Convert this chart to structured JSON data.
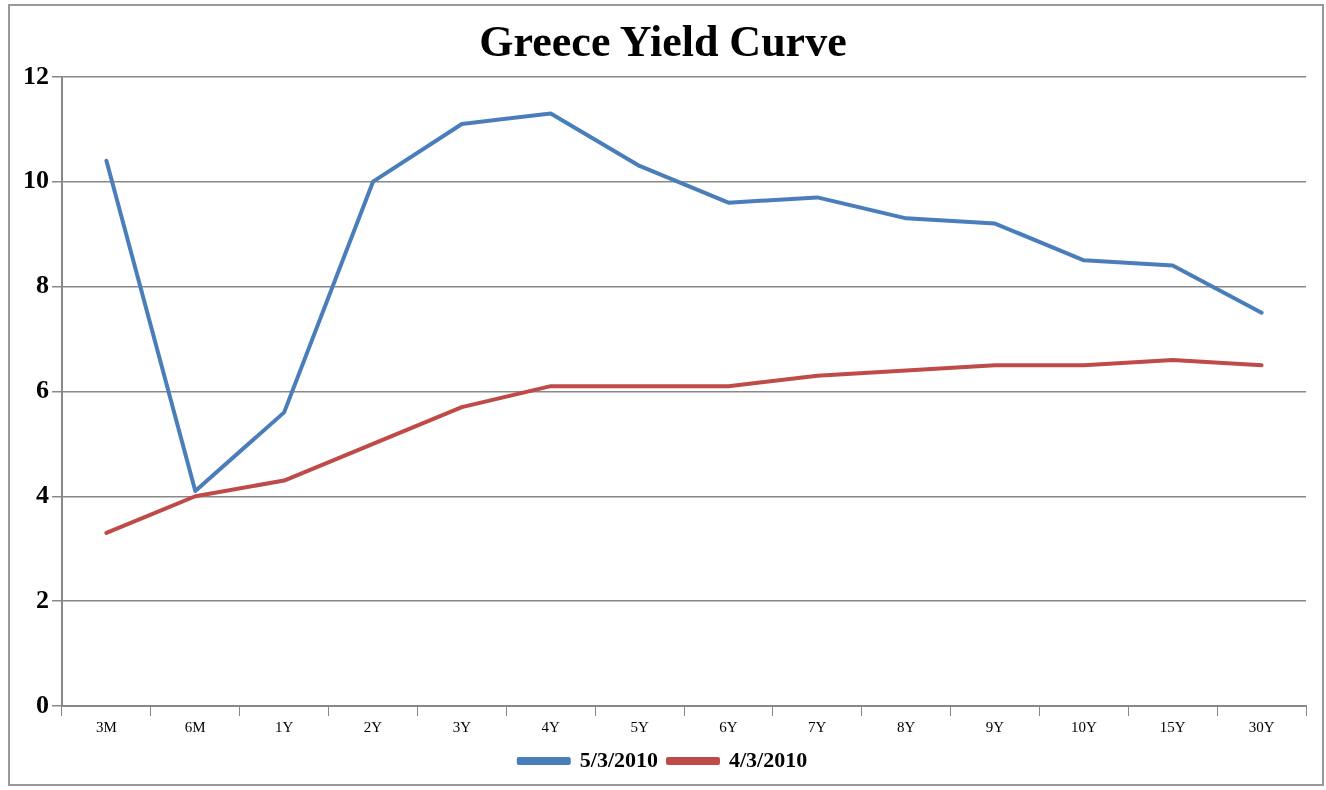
{
  "chart_data": {
    "type": "line",
    "title": "Greece Yield Curve",
    "categories": [
      "3M",
      "6M",
      "1Y",
      "2Y",
      "3Y",
      "4Y",
      "5Y",
      "6Y",
      "7Y",
      "8Y",
      "9Y",
      "10Y",
      "15Y",
      "30Y"
    ],
    "series": [
      {
        "name": "5/3/2010",
        "color": "#4a7ebb",
        "values": [
          10.4,
          4.1,
          5.6,
          10.0,
          11.1,
          11.3,
          10.3,
          9.6,
          9.7,
          9.3,
          9.2,
          8.5,
          8.4,
          7.5
        ]
      },
      {
        "name": "4/3/2010",
        "color": "#be4b48",
        "values": [
          3.3,
          4.0,
          4.3,
          5.0,
          5.7,
          6.1,
          6.1,
          6.1,
          6.3,
          6.4,
          6.5,
          6.5,
          6.6,
          6.5
        ]
      }
    ],
    "ylim": [
      0,
      12
    ],
    "yticks": [
      0,
      2,
      4,
      6,
      8,
      10,
      12
    ],
    "grid": "y",
    "legend": "bottom",
    "marker": "none",
    "line_style": "solid"
  }
}
